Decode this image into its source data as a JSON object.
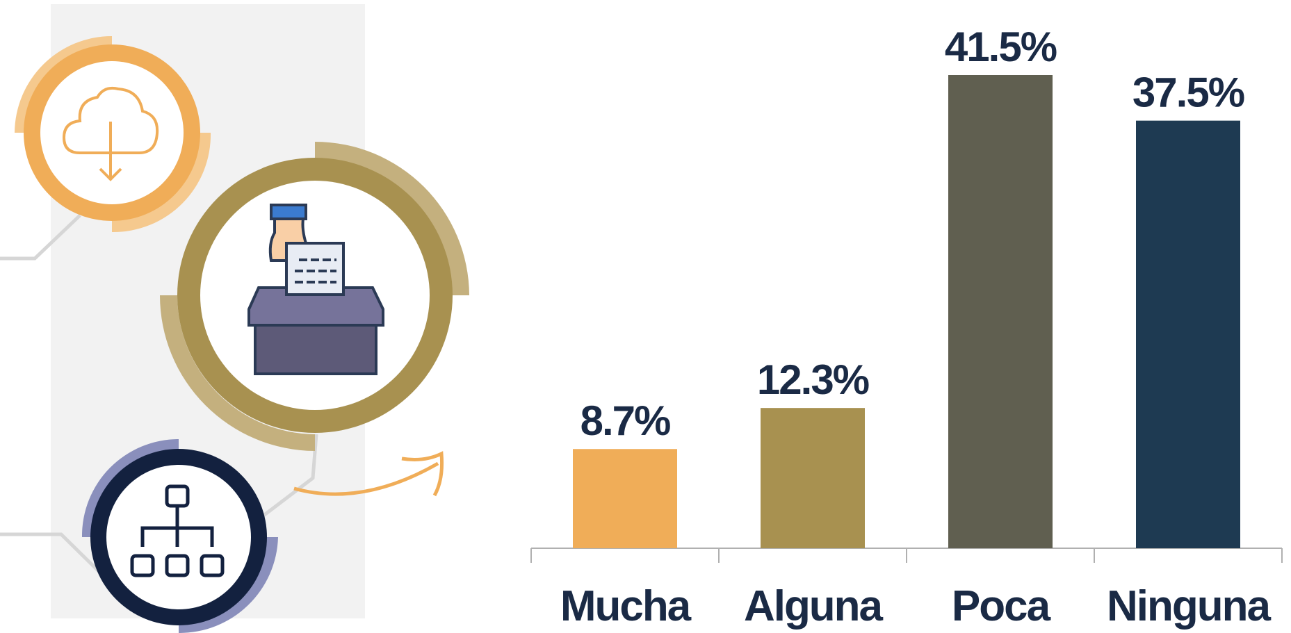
{
  "chart_data": {
    "type": "bar",
    "categories": [
      "Mucha",
      "Alguna",
      "Poca",
      "Ninguna"
    ],
    "values": [
      8.7,
      12.3,
      41.5,
      37.5
    ],
    "value_labels": [
      "8.7%",
      "12.3%",
      "41.5%",
      "37.5%"
    ],
    "colors": [
      "#f0ad58",
      "#a89150",
      "#605f50",
      "#1e3a52"
    ]
  }
}
